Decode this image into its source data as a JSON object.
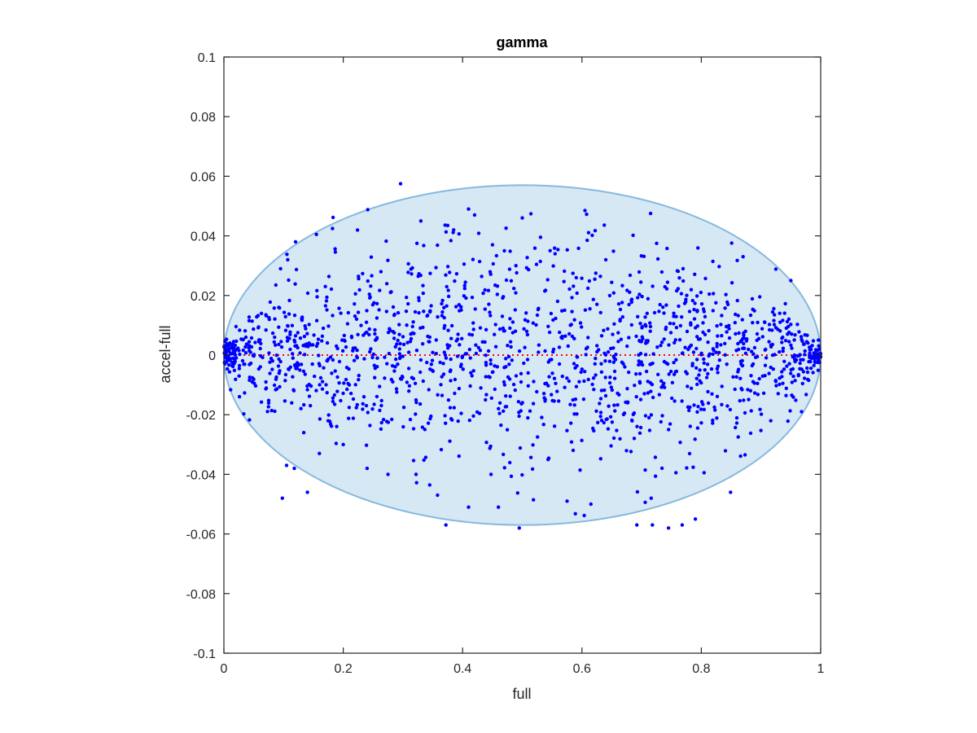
{
  "chart_data": {
    "type": "scatter",
    "title": "gamma",
    "xlabel": "full",
    "ylabel": "accel-full",
    "xlim": [
      0,
      1
    ],
    "ylim": [
      -0.1,
      0.1
    ],
    "x_ticks": [
      "0",
      "0.2",
      "0.4",
      "0.6",
      "0.8",
      "1"
    ],
    "x_tick_values": [
      0,
      0.2,
      0.4,
      0.6,
      0.8,
      1
    ],
    "y_ticks": [
      "-0.1",
      "-0.08",
      "-0.06",
      "-0.04",
      "-0.02",
      "0",
      "0.02",
      "0.04",
      "0.06",
      "0.08",
      "0.1"
    ],
    "y_tick_values": [
      -0.1,
      -0.08,
      -0.06,
      -0.04,
      -0.02,
      0,
      0.02,
      0.04,
      0.06,
      0.08,
      0.1
    ],
    "grid": false,
    "legend": "none",
    "ellipse": {
      "center_x": 0.5,
      "center_y": 0,
      "semi_axis_x": 0.5,
      "semi_axis_y": 0.057,
      "fill_color": "#d6e8f4",
      "edge_color": "#86b9de"
    },
    "reference_line": {
      "y": 0,
      "x_range": [
        0,
        1
      ],
      "color": "#ff0000",
      "style": "dotted"
    },
    "marker_color": "#0000ff",
    "series": [
      {
        "points": [
          [
            0.296,
            0.0575
          ],
          [
            0.241,
            0.0488
          ],
          [
            0.183,
            0.0462
          ],
          [
            0.41,
            0.049
          ],
          [
            0.42,
            0.047
          ],
          [
            0.5,
            0.046
          ],
          [
            0.605,
            0.0485
          ],
          [
            0.715,
            0.0475
          ],
          [
            0.155,
            0.0405
          ],
          [
            0.375,
            0.0435
          ],
          [
            0.33,
            0.045
          ],
          [
            0.45,
            0.037
          ],
          [
            0.385,
            0.042
          ],
          [
            0.47,
            0.035
          ],
          [
            0.555,
            0.034
          ],
          [
            0.64,
            0.032
          ],
          [
            0.87,
            0.033
          ],
          [
            0.12,
            0.038
          ],
          [
            0.107,
            0.032
          ],
          [
            0.095,
            0.029
          ],
          [
            0.105,
            -0.037
          ],
          [
            0.118,
            -0.038
          ],
          [
            0.098,
            -0.048
          ],
          [
            0.14,
            -0.046
          ],
          [
            0.372,
            -0.057
          ],
          [
            0.495,
            -0.058
          ],
          [
            0.692,
            -0.057
          ],
          [
            0.718,
            -0.057
          ],
          [
            0.745,
            -0.058
          ],
          [
            0.768,
            -0.057
          ],
          [
            0.79,
            -0.055
          ],
          [
            0.849,
            -0.046
          ],
          [
            0.716,
            -0.048
          ],
          [
            0.615,
            -0.05
          ],
          [
            0.575,
            -0.049
          ],
          [
            0.46,
            -0.051
          ],
          [
            0.41,
            -0.051
          ],
          [
            0.358,
            -0.047
          ],
          [
            0.322,
            -0.04
          ],
          [
            0.275,
            -0.04
          ],
          [
            0.24,
            -0.038
          ],
          [
            0.2,
            -0.03
          ],
          [
            0.16,
            -0.033
          ],
          [
            0.968,
            -0.019
          ],
          [
            0.95,
            0.025
          ]
        ]
      }
    ]
  }
}
